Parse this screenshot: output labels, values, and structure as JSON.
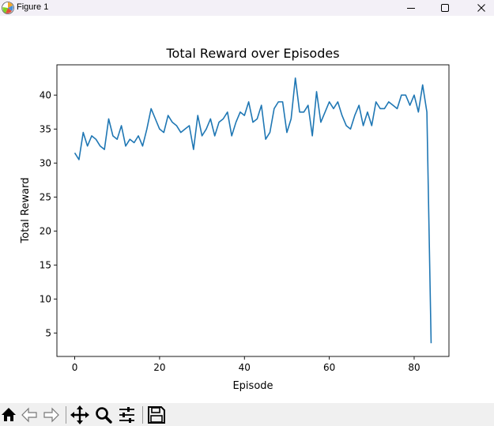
{
  "window": {
    "title": "Figure 1",
    "icons": {
      "app": "matplotlib-icon",
      "minimize": "minimize-icon",
      "maximize": "maximize-icon",
      "close": "close-icon"
    }
  },
  "toolbar": {
    "tools": [
      "home-icon",
      "back-icon",
      "forward-icon",
      "pan-icon",
      "zoom-icon",
      "configure-subplots-icon",
      "save-icon"
    ]
  },
  "colors": {
    "line": "#1f77b4",
    "titlebar": "#f3f0f7",
    "toolbar": "#f0f0f0"
  },
  "chart_data": {
    "type": "line",
    "title": "Total Reward over Episodes",
    "xlabel": "Episode",
    "ylabel": "Total Reward",
    "xlim": [
      -4.2,
      88.2
    ],
    "ylim": [
      1.55,
      44.45
    ],
    "xticks": [
      0,
      20,
      40,
      60,
      80
    ],
    "yticks": [
      5,
      10,
      15,
      20,
      25,
      30,
      35,
      40
    ],
    "grid": false,
    "legend": false,
    "series": [
      {
        "x": [
          0,
          1,
          2,
          3,
          4,
          5,
          6,
          7,
          8,
          9,
          10,
          11,
          12,
          13,
          14,
          15,
          16,
          17,
          18,
          19,
          20,
          21,
          22,
          23,
          24,
          25,
          26,
          27,
          28,
          29,
          30,
          31,
          32,
          33,
          34,
          35,
          36,
          37,
          38,
          39,
          40,
          41,
          42,
          43,
          44,
          45,
          46,
          47,
          48,
          49,
          50,
          51,
          52,
          53,
          54,
          55,
          56,
          57,
          58,
          59,
          60,
          61,
          62,
          63,
          64,
          65,
          66,
          67,
          68,
          69,
          70,
          71,
          72,
          73,
          74,
          75,
          76,
          77,
          78,
          79,
          80,
          81,
          82,
          83,
          84
        ],
        "values": [
          31.5,
          30.5,
          34.5,
          32.5,
          34,
          33.5,
          32.5,
          32,
          36.5,
          34,
          33.5,
          35.5,
          32.5,
          33.5,
          33,
          34,
          32.5,
          35,
          38,
          36.5,
          35,
          34.5,
          37,
          36,
          35.5,
          34.5,
          35,
          35.5,
          32,
          37,
          34,
          35,
          36.5,
          34,
          36,
          36.5,
          37.5,
          34,
          36,
          37.5,
          37,
          39,
          36,
          36.5,
          38.5,
          33.5,
          34.5,
          38,
          39,
          39,
          34.5,
          36.5,
          42.5,
          37.5,
          37.5,
          38.5,
          34,
          40.5,
          36,
          37.5,
          39,
          38,
          39,
          37,
          35.5,
          35,
          37,
          38.5,
          35.5,
          37.5,
          35.5,
          39,
          38,
          38,
          39,
          38.5,
          38,
          40,
          40,
          38.5,
          40,
          37.5,
          41.5,
          37.5,
          3.5
        ]
      }
    ]
  }
}
